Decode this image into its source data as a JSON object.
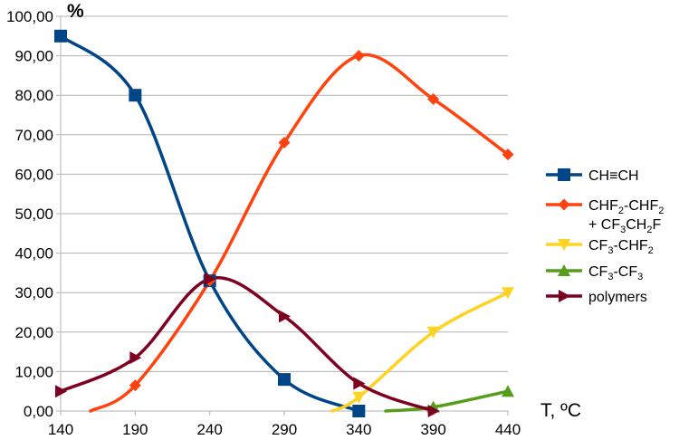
{
  "chart_data": {
    "type": "line",
    "ylabel": "%",
    "xlabel": "T, ºC",
    "xlim": [
      140,
      440
    ],
    "ylim": [
      0,
      100
    ],
    "x_ticks": [
      "140",
      "190",
      "240",
      "290",
      "340",
      "390",
      "440"
    ],
    "y_ticks": [
      "0,00",
      "10,00",
      "20,00",
      "30,00",
      "40,00",
      "50,00",
      "60,00",
      "70,00",
      "80,00",
      "90,00",
      "100,00"
    ],
    "grid": "horizontal",
    "legend_position": "right",
    "series": [
      {
        "name": "CH≡CH",
        "color": "#004586",
        "marker": "square",
        "x": [
          140,
          190,
          240,
          290,
          340
        ],
        "y": [
          95,
          80,
          33,
          8,
          0
        ]
      },
      {
        "name": "CHF2-CHF2 + CF3CH2F",
        "legend_lines": [
          [
            {
              "t": "CHF"
            },
            {
              "t": "2",
              "sub": true
            },
            {
              "t": "-CHF"
            },
            {
              "t": "2",
              "sub": true
            }
          ],
          [
            {
              "t": "+ CF"
            },
            {
              "t": "3",
              "sub": true
            },
            {
              "t": "CH"
            },
            {
              "t": "2",
              "sub": true
            },
            {
              "t": "F"
            }
          ]
        ],
        "color": "#ff420e",
        "marker": "diamond",
        "x": [
          190,
          240,
          290,
          340,
          390,
          440
        ],
        "y": [
          6.5,
          33,
          68,
          90,
          79,
          65
        ],
        "curve_start": [
          160,
          0
        ]
      },
      {
        "name": "CF3-CHF2",
        "legend_lines": [
          [
            {
              "t": "CF"
            },
            {
              "t": "3",
              "sub": true
            },
            {
              "t": "-CHF"
            },
            {
              "t": "2",
              "sub": true
            }
          ]
        ],
        "color": "#ffd320",
        "marker": "triangle-down",
        "x": [
          340,
          390,
          440
        ],
        "y": [
          3.5,
          20,
          30
        ],
        "curve_start": [
          322,
          0
        ]
      },
      {
        "name": "CF3-CF3",
        "legend_lines": [
          [
            {
              "t": "CF"
            },
            {
              "t": "3",
              "sub": true
            },
            {
              "t": "-CF"
            },
            {
              "t": "3",
              "sub": true
            }
          ]
        ],
        "color": "#579d1c",
        "marker": "triangle-up",
        "x": [
          390,
          440
        ],
        "y": [
          1,
          5
        ],
        "curve_start": [
          358,
          0
        ]
      },
      {
        "name": "polymers",
        "color": "#7e0021",
        "marker": "triangle-right",
        "x": [
          140,
          190,
          240,
          290,
          340,
          390
        ],
        "y": [
          5,
          13.5,
          33.5,
          24,
          7,
          0
        ]
      }
    ]
  }
}
